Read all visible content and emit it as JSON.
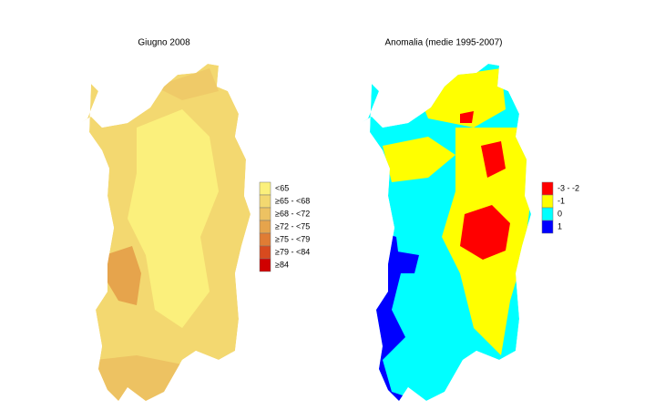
{
  "maps": [
    {
      "title": "Giugno 2008",
      "legend": [
        {
          "label": "<65",
          "color": "#fbf07c"
        },
        {
          "label": "≥65 - <68",
          "color": "#f3d870"
        },
        {
          "label": "≥68 - <72",
          "color": "#edc262"
        },
        {
          "label": "≥72 - <75",
          "color": "#e6a44c"
        },
        {
          "label": "≥75 - <79",
          "color": "#e07c34"
        },
        {
          "label": "≥79 - <84",
          "color": "#d84a1e"
        },
        {
          "label": "≥84",
          "color": "#d00000"
        }
      ]
    },
    {
      "title": "Anomalia (medie 1995-2007)",
      "legend": [
        {
          "label": "-3 - -2",
          "color": "#ff0000"
        },
        {
          "label": "-1",
          "color": "#ffff00"
        },
        {
          "label": "0",
          "color": "#00ffff"
        },
        {
          "label": "1",
          "color": "#0000ff"
        }
      ]
    }
  ]
}
